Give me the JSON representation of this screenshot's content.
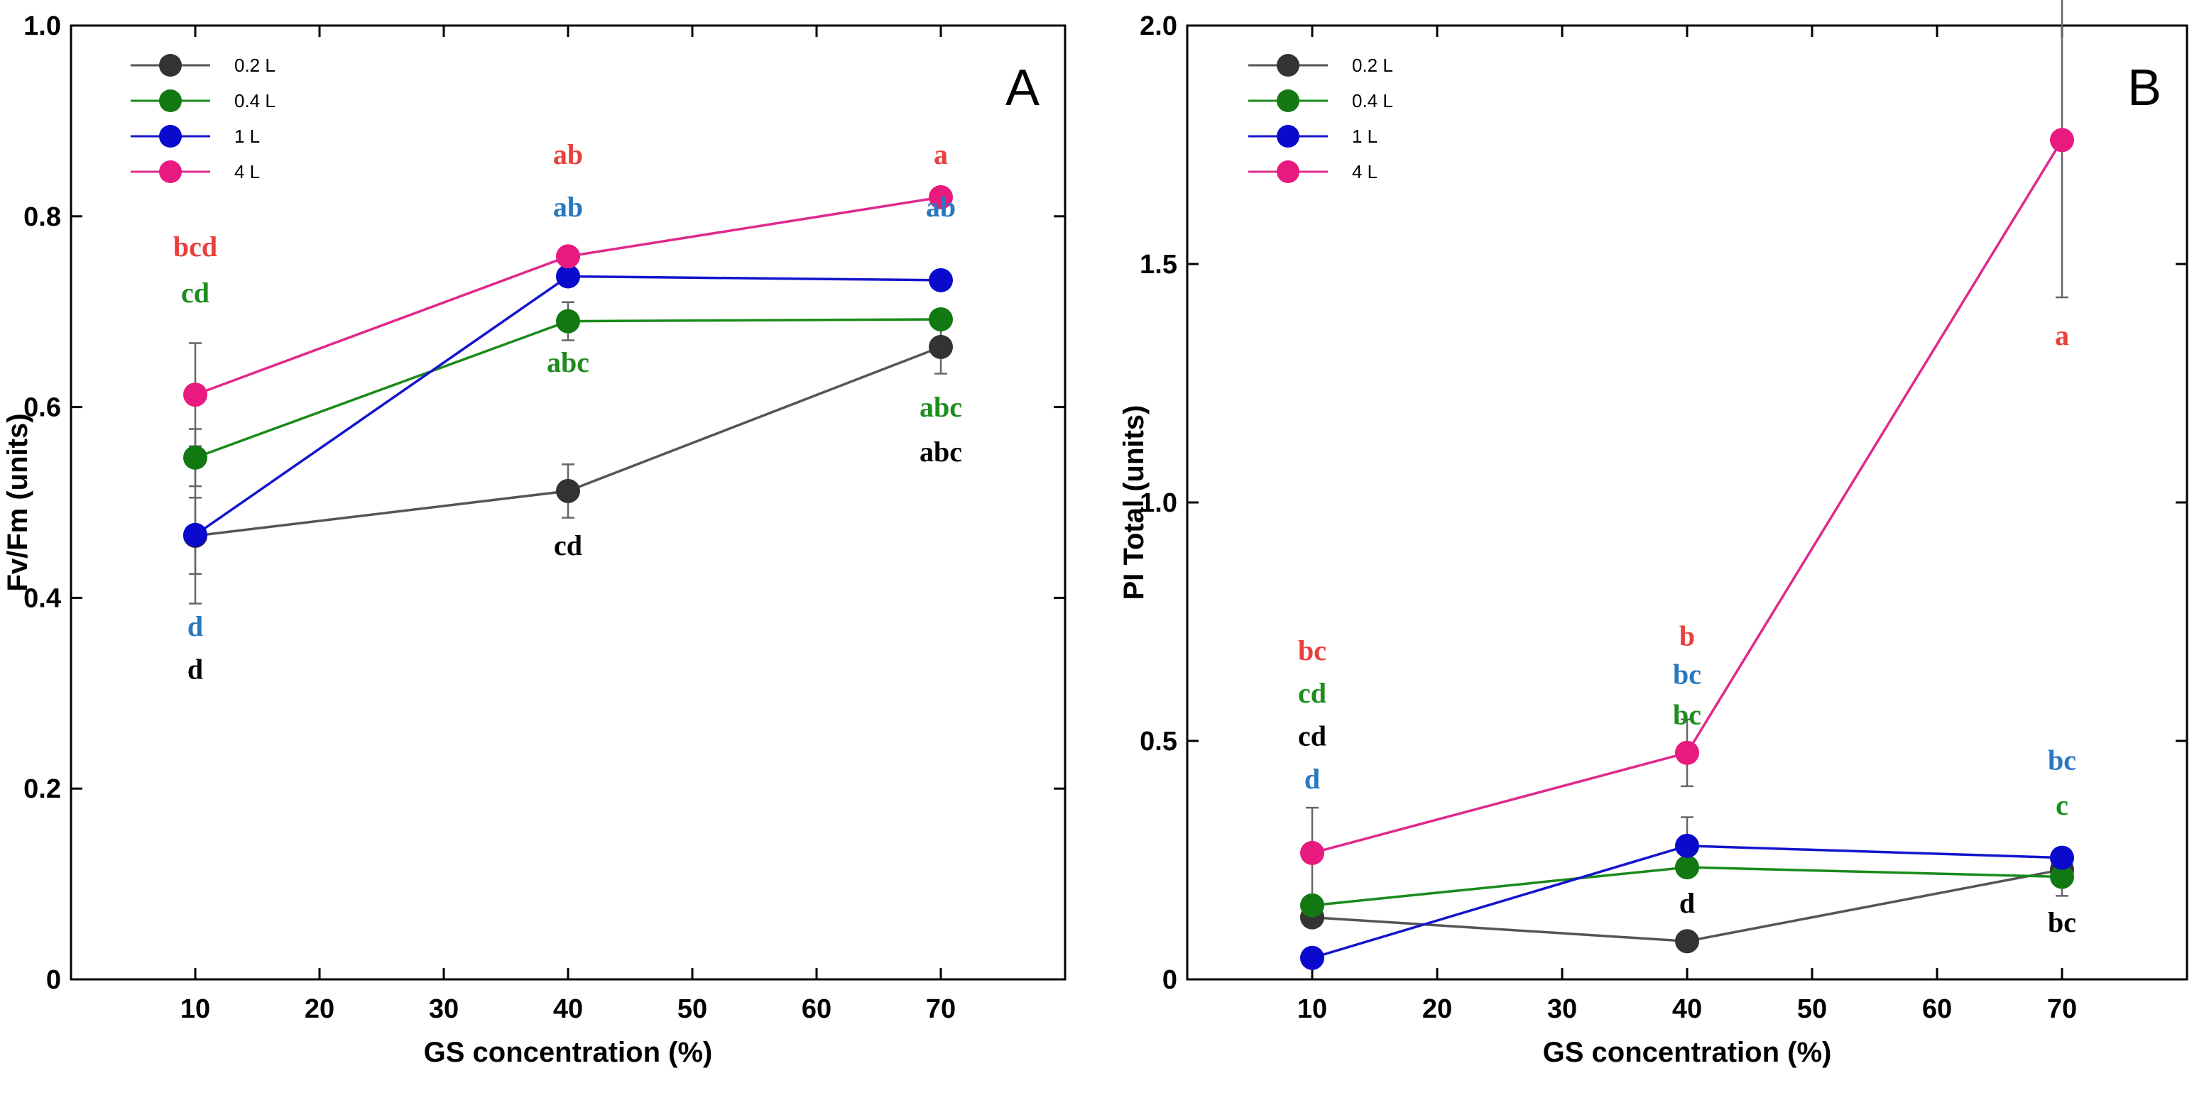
{
  "chart_data": [
    {
      "panel": "A",
      "type": "line",
      "xlabel": "GS concentration (%)",
      "ylabel": "Fv/Fm (units)",
      "xlim": [
        0,
        80
      ],
      "ylim": [
        0,
        1.0
      ],
      "x_ticks": [
        10,
        20,
        30,
        40,
        50,
        60,
        70
      ],
      "y_ticks": [
        0,
        0.2,
        0.4,
        0.6,
        0.8,
        1.0
      ],
      "y_tick_labels": [
        "0",
        "0.2",
        "0.4",
        "0.6",
        "0.8",
        "1.0"
      ],
      "grid": false,
      "legend_position": "top-left",
      "x": [
        10,
        40,
        70
      ],
      "series": [
        {
          "name": "0.2 L",
          "color": "#555555",
          "marker_color": "#333333",
          "values": [
            0.465,
            0.512,
            0.663
          ],
          "errors": [
            0.04,
            0.028,
            0.028
          ]
        },
        {
          "name": "0.4 L",
          "color": "#1a8a1a",
          "marker_color": "#127812",
          "values": [
            0.547,
            0.69,
            0.692
          ],
          "errors": [
            0.03,
            0.02,
            0.0
          ]
        },
        {
          "name": "1 L",
          "color": "#1414cc",
          "marker_color": "#0a0acc",
          "values": [
            0.466,
            0.737,
            0.733
          ],
          "errors": [
            0.072,
            0.0,
            0.0
          ]
        },
        {
          "name": "4 L",
          "color": "#e0288c",
          "marker_color": "#e8197f",
          "values": [
            0.613,
            0.758,
            0.82
          ],
          "errors": [
            0.054,
            0.0,
            0.0
          ]
        }
      ],
      "annotations": [
        {
          "text": "bcd",
          "x": 10,
          "y": 0.758,
          "color": "#e8403c"
        },
        {
          "text": "cd",
          "x": 10,
          "y": 0.71,
          "color": "#1e8c1e"
        },
        {
          "text": "d",
          "x": 10,
          "y": 0.36,
          "color": "#2878c0"
        },
        {
          "text": "d",
          "x": 10,
          "y": 0.315,
          "color": "#000000"
        },
        {
          "text": "ab",
          "x": 40,
          "y": 0.855,
          "color": "#e8403c"
        },
        {
          "text": "ab",
          "x": 40,
          "y": 0.8,
          "color": "#2878c0"
        },
        {
          "text": "abc",
          "x": 40,
          "y": 0.637,
          "color": "#1e8c1e"
        },
        {
          "text": "cd",
          "x": 40,
          "y": 0.445,
          "color": "#000000"
        },
        {
          "text": "a",
          "x": 70,
          "y": 0.855,
          "color": "#e8403c"
        },
        {
          "text": "ab",
          "x": 70,
          "y": 0.8,
          "color": "#2878c0"
        },
        {
          "text": "abc",
          "x": 70,
          "y": 0.59,
          "color": "#1e8c1e"
        },
        {
          "text": "abc",
          "x": 70,
          "y": 0.543,
          "color": "#000000"
        }
      ]
    },
    {
      "panel": "B",
      "type": "line",
      "xlabel": "GS concentration (%)",
      "ylabel": "PI Total (units)",
      "xlim": [
        0,
        80
      ],
      "ylim": [
        0,
        2.0
      ],
      "x_ticks": [
        10,
        20,
        30,
        40,
        50,
        60,
        70
      ],
      "y_ticks": [
        0,
        0.5,
        1.0,
        1.5,
        2.0
      ],
      "y_tick_labels": [
        "0",
        "0.5",
        "1.0",
        "1.5",
        "2.0"
      ],
      "grid": false,
      "legend_position": "top-left",
      "x": [
        10,
        40,
        70
      ],
      "series": [
        {
          "name": "0.2 L",
          "color": "#555555",
          "marker_color": "#333333",
          "values": [
            0.13,
            0.08,
            0.23
          ],
          "errors": [
            0.0,
            0.0,
            0.0
          ]
        },
        {
          "name": "0.4 L",
          "color": "#1a8a1a",
          "marker_color": "#127812",
          "values": [
            0.155,
            0.235,
            0.215
          ],
          "errors": [
            0.0,
            0.0,
            0.04
          ]
        },
        {
          "name": "1 L",
          "color": "#1414cc",
          "marker_color": "#0a0acc",
          "values": [
            0.045,
            0.28,
            0.255
          ],
          "errors": [
            0.0,
            0.06,
            0.0
          ]
        },
        {
          "name": "4 L",
          "color": "#e0288c",
          "marker_color": "#e8197f",
          "values": [
            0.265,
            0.475,
            1.76
          ],
          "errors": [
            0.095,
            0.07,
            0.33
          ]
        }
      ],
      "annotations": [
        {
          "text": "bc",
          "x": 10,
          "y": 0.67,
          "color": "#e8403c"
        },
        {
          "text": "cd",
          "x": 10,
          "y": 0.58,
          "color": "#1e8c1e"
        },
        {
          "text": "cd",
          "x": 10,
          "y": 0.49,
          "color": "#000000"
        },
        {
          "text": "d",
          "x": 10,
          "y": 0.4,
          "color": "#2878c0"
        },
        {
          "text": "b",
          "x": 40,
          "y": 0.7,
          "color": "#e8403c"
        },
        {
          "text": "bc",
          "x": 40,
          "y": 0.62,
          "color": "#2878c0"
        },
        {
          "text": "bc",
          "x": 40,
          "y": 0.535,
          "color": "#1e8c1e"
        },
        {
          "text": "d",
          "x": 40,
          "y": 0.14,
          "color": "#000000"
        },
        {
          "text": "a",
          "x": 70,
          "y": 1.33,
          "color": "#e8403c"
        },
        {
          "text": "bc",
          "x": 70,
          "y": 0.44,
          "color": "#2878c0"
        },
        {
          "text": "c",
          "x": 70,
          "y": 0.345,
          "color": "#1e8c1e"
        },
        {
          "text": "bc",
          "x": 70,
          "y": 0.1,
          "color": "#000000"
        }
      ]
    }
  ]
}
